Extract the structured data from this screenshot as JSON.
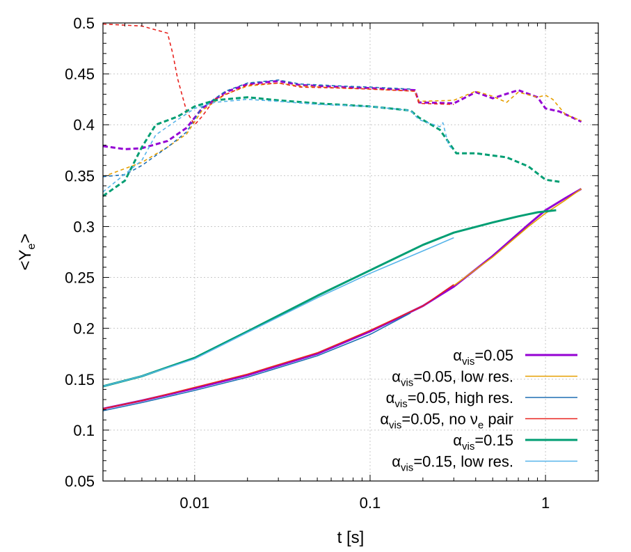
{
  "chart_data": {
    "type": "line",
    "title": "",
    "xlabel": "t [s]",
    "ylabel": "<Ye>",
    "ylabel_parts": {
      "open": "<Y",
      "sub": "e",
      "close": ">"
    },
    "xscale": "log",
    "xlim": [
      0.003,
      2
    ],
    "ylim": [
      0.05,
      0.5
    ],
    "grid": true,
    "legend_position": "bottom-right",
    "x_ticks": [
      {
        "value": 0.01,
        "label": "0.01"
      },
      {
        "value": 0.1,
        "label": "0.1"
      },
      {
        "value": 1,
        "label": "1"
      }
    ],
    "y_ticks": [
      {
        "value": 0.05,
        "label": "0.05"
      },
      {
        "value": 0.1,
        "label": "0.1"
      },
      {
        "value": 0.15,
        "label": "0.15"
      },
      {
        "value": 0.2,
        "label": "0.2"
      },
      {
        "value": 0.25,
        "label": "0.25"
      },
      {
        "value": 0.3,
        "label": "0.3"
      },
      {
        "value": 0.35,
        "label": "0.35"
      },
      {
        "value": 0.4,
        "label": "0.4"
      },
      {
        "value": 0.45,
        "label": "0.45"
      },
      {
        "value": 0.5,
        "label": "0.5"
      }
    ],
    "series": [
      {
        "name": "αvis=0.05",
        "label_parts": {
          "main": "α",
          "sub": "vis",
          "rest": "=0.05"
        },
        "color": "#9400d3",
        "width": 3,
        "solid": [
          [
            0.003,
            0.121
          ],
          [
            0.005,
            0.129
          ],
          [
            0.01,
            0.141
          ],
          [
            0.02,
            0.154
          ],
          [
            0.05,
            0.175
          ],
          [
            0.1,
            0.197
          ],
          [
            0.2,
            0.222
          ],
          [
            0.3,
            0.241
          ],
          [
            0.5,
            0.271
          ],
          [
            0.8,
            0.302
          ],
          [
            1.0,
            0.316
          ],
          [
            1.3,
            0.328
          ],
          [
            1.6,
            0.337
          ]
        ],
        "dashed": [
          [
            0.003,
            0.379
          ],
          [
            0.004,
            0.376
          ],
          [
            0.005,
            0.377
          ],
          [
            0.007,
            0.384
          ],
          [
            0.009,
            0.397
          ],
          [
            0.011,
            0.416
          ],
          [
            0.015,
            0.432
          ],
          [
            0.02,
            0.44
          ],
          [
            0.03,
            0.443
          ],
          [
            0.04,
            0.439
          ],
          [
            0.07,
            0.437
          ],
          [
            0.1,
            0.436
          ],
          [
            0.18,
            0.434
          ],
          [
            0.19,
            0.422
          ],
          [
            0.3,
            0.421
          ],
          [
            0.4,
            0.432
          ],
          [
            0.5,
            0.426
          ],
          [
            0.7,
            0.434
          ],
          [
            0.9,
            0.427
          ],
          [
            1.0,
            0.416
          ],
          [
            1.2,
            0.413
          ],
          [
            1.6,
            0.403
          ]
        ]
      },
      {
        "name": "αvis=0.05, low res.",
        "label_parts": {
          "main": "α",
          "sub": "vis",
          "rest": "=0.05, low res."
        },
        "color": "#e69f00",
        "width": 1.6,
        "solid": [
          [
            0.3,
            0.242
          ],
          [
            0.5,
            0.27
          ],
          [
            0.8,
            0.3
          ],
          [
            1.0,
            0.313
          ],
          [
            1.3,
            0.326
          ],
          [
            1.6,
            0.337
          ]
        ],
        "dashed": [
          [
            0.003,
            0.349
          ],
          [
            0.005,
            0.363
          ],
          [
            0.007,
            0.378
          ],
          [
            0.009,
            0.391
          ],
          [
            0.011,
            0.414
          ],
          [
            0.015,
            0.43
          ],
          [
            0.02,
            0.438
          ],
          [
            0.03,
            0.441
          ],
          [
            0.04,
            0.438
          ],
          [
            0.07,
            0.436
          ],
          [
            0.1,
            0.435
          ],
          [
            0.18,
            0.433
          ],
          [
            0.19,
            0.423
          ],
          [
            0.3,
            0.424
          ],
          [
            0.4,
            0.433
          ],
          [
            0.5,
            0.428
          ],
          [
            0.6,
            0.422
          ],
          [
            0.7,
            0.432
          ],
          [
            0.9,
            0.427
          ],
          [
            1.0,
            0.429
          ],
          [
            1.1,
            0.425
          ],
          [
            1.3,
            0.41
          ],
          [
            1.6,
            0.404
          ]
        ]
      },
      {
        "name": "αvis=0.05, high res.",
        "label_parts": {
          "main": "α",
          "sub": "vis",
          "rest": "=0.05, high res."
        },
        "color": "#1f6fb4",
        "width": 1.6,
        "solid": [
          [
            0.003,
            0.119
          ],
          [
            0.005,
            0.127
          ],
          [
            0.01,
            0.139
          ],
          [
            0.02,
            0.152
          ],
          [
            0.05,
            0.173
          ],
          [
            0.1,
            0.194
          ],
          [
            0.17,
            0.215
          ]
        ],
        "dashed": [
          [
            0.003,
            0.349
          ],
          [
            0.004,
            0.351
          ],
          [
            0.005,
            0.36
          ],
          [
            0.007,
            0.378
          ],
          [
            0.009,
            0.393
          ],
          [
            0.011,
            0.417
          ],
          [
            0.015,
            0.433
          ],
          [
            0.02,
            0.441
          ],
          [
            0.03,
            0.444
          ],
          [
            0.04,
            0.44
          ],
          [
            0.07,
            0.438
          ],
          [
            0.1,
            0.437
          ],
          [
            0.17,
            0.435
          ]
        ]
      },
      {
        "name": "αvis=0.05, no νe pair",
        "label_parts": {
          "main": "α",
          "sub": "vis",
          "rest": "=0.05, no ν",
          "sub2": "e",
          "rest2": " pair"
        },
        "color": "#e8231f",
        "width": 1.6,
        "solid": [
          [
            0.003,
            0.121
          ],
          [
            0.005,
            0.129
          ],
          [
            0.01,
            0.142
          ],
          [
            0.02,
            0.155
          ],
          [
            0.05,
            0.176
          ],
          [
            0.1,
            0.198
          ],
          [
            0.2,
            0.222
          ],
          [
            0.3,
            0.243
          ]
        ],
        "dashed": [
          [
            0.003,
            0.499
          ],
          [
            0.005,
            0.497
          ],
          [
            0.007,
            0.49
          ],
          [
            0.0075,
            0.47
          ],
          [
            0.008,
            0.445
          ],
          [
            0.009,
            0.413
          ],
          [
            0.01,
            0.4
          ],
          [
            0.011,
            0.408
          ],
          [
            0.013,
            0.425
          ],
          [
            0.02,
            0.439
          ],
          [
            0.03,
            0.441
          ],
          [
            0.04,
            0.437
          ],
          [
            0.07,
            0.436
          ],
          [
            0.1,
            0.435
          ],
          [
            0.18,
            0.433
          ],
          [
            0.19,
            0.421
          ],
          [
            0.3,
            0.42
          ]
        ]
      },
      {
        "name": "αvis=0.15",
        "label_parts": {
          "main": "α",
          "sub": "vis",
          "rest": "=0.15"
        },
        "color": "#009e73",
        "width": 3,
        "solid": [
          [
            0.003,
            0.143
          ],
          [
            0.005,
            0.153
          ],
          [
            0.01,
            0.171
          ],
          [
            0.02,
            0.197
          ],
          [
            0.05,
            0.232
          ],
          [
            0.1,
            0.257
          ],
          [
            0.2,
            0.282
          ],
          [
            0.3,
            0.294
          ],
          [
            0.5,
            0.304
          ],
          [
            0.7,
            0.31
          ],
          [
            0.9,
            0.314
          ],
          [
            1.15,
            0.316
          ]
        ],
        "dashed": [
          [
            0.003,
            0.33
          ],
          [
            0.004,
            0.345
          ],
          [
            0.005,
            0.378
          ],
          [
            0.006,
            0.4
          ],
          [
            0.008,
            0.408
          ],
          [
            0.01,
            0.418
          ],
          [
            0.013,
            0.424
          ],
          [
            0.02,
            0.427
          ],
          [
            0.03,
            0.424
          ],
          [
            0.05,
            0.421
          ],
          [
            0.1,
            0.418
          ],
          [
            0.17,
            0.414
          ],
          [
            0.19,
            0.407
          ],
          [
            0.25,
            0.395
          ],
          [
            0.28,
            0.383
          ],
          [
            0.31,
            0.372
          ],
          [
            0.4,
            0.372
          ],
          [
            0.6,
            0.368
          ],
          [
            0.8,
            0.359
          ],
          [
            1.0,
            0.346
          ],
          [
            1.2,
            0.344
          ]
        ]
      },
      {
        "name": "αvis=0.15, low res.",
        "label_parts": {
          "main": "α",
          "sub": "vis",
          "rest": "=0.15, low res."
        },
        "color": "#56b4e9",
        "width": 1.6,
        "solid": [
          [
            0.003,
            0.143
          ],
          [
            0.005,
            0.153
          ],
          [
            0.01,
            0.17
          ],
          [
            0.02,
            0.196
          ],
          [
            0.05,
            0.23
          ],
          [
            0.1,
            0.254
          ],
          [
            0.2,
            0.276
          ],
          [
            0.3,
            0.289
          ]
        ],
        "dashed": [
          [
            0.003,
            0.334
          ],
          [
            0.005,
            0.365
          ],
          [
            0.006,
            0.39
          ],
          [
            0.008,
            0.405
          ],
          [
            0.01,
            0.416
          ],
          [
            0.013,
            0.422
          ],
          [
            0.02,
            0.425
          ],
          [
            0.03,
            0.423
          ],
          [
            0.05,
            0.42
          ],
          [
            0.1,
            0.418
          ],
          [
            0.17,
            0.414
          ],
          [
            0.19,
            0.405
          ],
          [
            0.25,
            0.398
          ],
          [
            0.26,
            0.402
          ],
          [
            0.28,
            0.38
          ],
          [
            0.3,
            0.375
          ]
        ]
      }
    ]
  }
}
